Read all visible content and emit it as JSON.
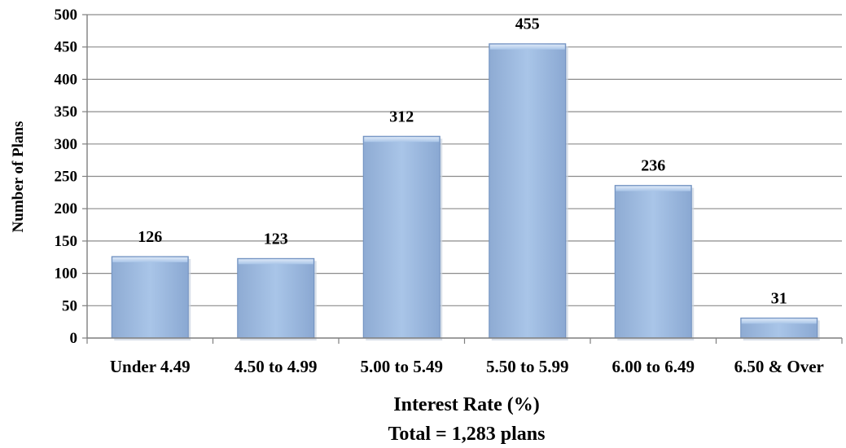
{
  "chart_data": {
    "type": "bar",
    "categories": [
      "Under 4.49",
      "4.50 to 4.99",
      "5.00 to 5.49",
      "5.50 to 5.99",
      "6.00 to 6.49",
      "6.50 & Over"
    ],
    "values": [
      126,
      123,
      312,
      455,
      236,
      31
    ],
    "data_labels": [
      "126",
      "123",
      "312",
      "455",
      "236",
      "31"
    ],
    "xlabel": "Interest Rate (%)",
    "subtitle": "Total = 1,283 plans",
    "ylabel": "Number of Plans",
    "ylim": [
      0,
      500
    ],
    "yticks": [
      0,
      50,
      100,
      150,
      200,
      250,
      300,
      350,
      400,
      450,
      500
    ],
    "grid": true,
    "legend": "none",
    "bar_color": "#9dbbe0",
    "bar_edge_color": "#6f8fbf"
  }
}
